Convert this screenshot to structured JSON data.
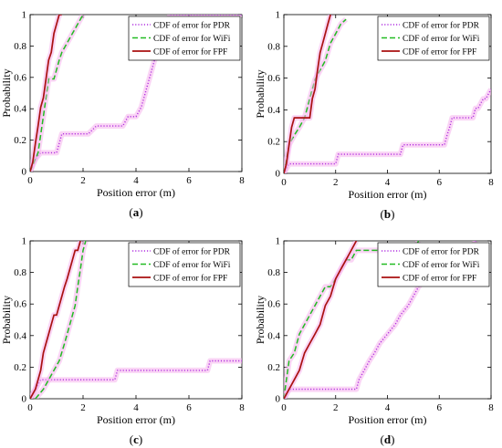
{
  "colors": {
    "pdr": "#b030e0",
    "wifi": "#22bb22",
    "fpf": "#aa1111",
    "halo": "#f6b3ec",
    "axis": "#000000"
  },
  "chart_data": [
    {
      "type": "line",
      "panel_label": "(a)",
      "xlabel": "Position error (m)",
      "ylabel": "Probability",
      "xlim": [
        0,
        8
      ],
      "ylim": [
        0,
        1
      ],
      "xticks": [
        0,
        2,
        4,
        6,
        8
      ],
      "yticks": [
        0,
        0.2,
        0.4,
        0.6,
        0.8,
        1
      ],
      "legend_position": "top-right",
      "series": [
        {
          "name": "CDF of error for PDR",
          "style": "dotted",
          "color_key": "pdr",
          "x": [
            0,
            0.1,
            0.2,
            0.4,
            0.5,
            1.0,
            1.1,
            1.2,
            2.0,
            2.2,
            2.5,
            3.0,
            3.5,
            3.7,
            4.0,
            4.2,
            4.3,
            4.4,
            4.5,
            4.6,
            4.7,
            4.8,
            4.9,
            5.0,
            5.1,
            5.3,
            8.0
          ],
          "y": [
            0,
            0.05,
            0.08,
            0.12,
            0.12,
            0.12,
            0.18,
            0.24,
            0.24,
            0.24,
            0.29,
            0.29,
            0.29,
            0.35,
            0.35,
            0.41,
            0.47,
            0.53,
            0.59,
            0.65,
            0.71,
            0.76,
            0.82,
            0.88,
            0.94,
            1.0,
            1.0
          ]
        },
        {
          "name": "CDF of error for WiFi",
          "style": "dashed",
          "color_key": "wifi",
          "x": [
            0,
            0.3,
            0.5,
            0.7,
            0.9,
            1.0,
            1.1,
            1.2,
            1.4,
            1.6,
            1.8,
            2.0
          ],
          "y": [
            0,
            0.12,
            0.35,
            0.59,
            0.59,
            0.65,
            0.71,
            0.76,
            0.82,
            0.88,
            0.94,
            1.0
          ]
        },
        {
          "name": "CDF of error for FPF",
          "style": "solid",
          "color_key": "fpf",
          "x": [
            0,
            0.1,
            0.2,
            0.3,
            0.4,
            0.5,
            0.6,
            0.7,
            0.8,
            0.9,
            1.0,
            1.1,
            1.2
          ],
          "y": [
            0,
            0.06,
            0.18,
            0.29,
            0.41,
            0.47,
            0.59,
            0.71,
            0.76,
            0.88,
            0.94,
            1.0,
            1.0
          ]
        }
      ]
    },
    {
      "type": "line",
      "panel_label": "(b)",
      "xlabel": "Position error (m)",
      "ylabel": "Probability",
      "xlim": [
        0,
        8
      ],
      "ylim": [
        0,
        1
      ],
      "xticks": [
        0,
        2,
        4,
        6,
        8
      ],
      "yticks": [
        0,
        0.2,
        0.4,
        0.6,
        0.8,
        1
      ],
      "legend_position": "top-right",
      "series": [
        {
          "name": "CDF of error for PDR",
          "style": "dotted",
          "color_key": "pdr",
          "x": [
            0,
            0.2,
            0.3,
            2.0,
            2.1,
            4.5,
            4.6,
            6.2,
            6.3,
            6.4,
            6.5,
            7.3,
            7.4,
            7.5,
            7.7,
            7.8,
            8.0
          ],
          "y": [
            0,
            0.06,
            0.06,
            0.06,
            0.12,
            0.12,
            0.18,
            0.18,
            0.24,
            0.29,
            0.35,
            0.35,
            0.41,
            0.41,
            0.47,
            0.47,
            0.53
          ]
        },
        {
          "name": "CDF of error for WiFi",
          "style": "dashed",
          "color_key": "wifi",
          "x": [
            0,
            0.2,
            0.4,
            0.6,
            0.8,
            1.0,
            1.2,
            1.4,
            1.6,
            1.8,
            2.0,
            2.2,
            2.4
          ],
          "y": [
            0,
            0.18,
            0.24,
            0.29,
            0.35,
            0.47,
            0.59,
            0.65,
            0.71,
            0.82,
            0.88,
            0.94,
            0.97
          ]
        },
        {
          "name": "CDF of error for FPF",
          "style": "solid",
          "color_key": "fpf",
          "x": [
            0,
            0.1,
            0.2,
            0.3,
            0.4,
            0.5,
            0.6,
            1.0,
            1.1,
            1.2,
            1.3,
            1.4,
            1.5,
            1.6,
            1.7,
            1.8
          ],
          "y": [
            0,
            0.06,
            0.18,
            0.29,
            0.35,
            0.35,
            0.35,
            0.35,
            0.47,
            0.53,
            0.65,
            0.76,
            0.82,
            0.88,
            0.94,
            1.0
          ]
        }
      ]
    },
    {
      "type": "line",
      "panel_label": "(c)",
      "xlabel": "Position error (m)",
      "ylabel": "Probability",
      "xlim": [
        0,
        8
      ],
      "ylim": [
        0,
        1
      ],
      "xticks": [
        0,
        2,
        4,
        6,
        8
      ],
      "yticks": [
        0,
        0.2,
        0.4,
        0.6,
        0.8,
        1
      ],
      "legend_position": "top-right",
      "series": [
        {
          "name": "CDF of error for PDR",
          "style": "dotted",
          "color_key": "pdr",
          "x": [
            0,
            0.2,
            0.4,
            3.2,
            3.3,
            6.7,
            6.8,
            8.0
          ],
          "y": [
            0,
            0.06,
            0.12,
            0.12,
            0.18,
            0.18,
            0.24,
            0.24
          ]
        },
        {
          "name": "CDF of error for WiFi",
          "style": "dashed",
          "color_key": "wifi",
          "x": [
            0.2,
            0.5,
            0.7,
            0.9,
            1.1,
            1.3,
            1.5,
            1.7,
            1.8,
            1.9,
            2.0,
            2.1
          ],
          "y": [
            0,
            0.06,
            0.12,
            0.18,
            0.24,
            0.35,
            0.47,
            0.59,
            0.71,
            0.82,
            0.94,
            1.0
          ]
        },
        {
          "name": "CDF of error for FPF",
          "style": "solid",
          "color_key": "fpf",
          "x": [
            0,
            0.2,
            0.3,
            0.4,
            0.5,
            0.6,
            0.7,
            0.8,
            0.9,
            1.0,
            1.1,
            1.2,
            1.3,
            1.4,
            1.5,
            1.6,
            1.7,
            1.8,
            1.9
          ],
          "y": [
            0,
            0.06,
            0.12,
            0.18,
            0.29,
            0.35,
            0.41,
            0.47,
            0.53,
            0.53,
            0.59,
            0.65,
            0.71,
            0.76,
            0.82,
            0.88,
            0.94,
            0.94,
            1.0
          ]
        }
      ]
    },
    {
      "type": "line",
      "panel_label": "(d)",
      "xlabel": "Position error (m)",
      "ylabel": "Probability",
      "xlim": [
        0,
        8
      ],
      "ylim": [
        0,
        1
      ],
      "xticks": [
        0,
        2,
        4,
        6,
        8
      ],
      "yticks": [
        0,
        0.2,
        0.4,
        0.6,
        0.8,
        1
      ],
      "legend_position": "top-right",
      "series": [
        {
          "name": "CDF of error for PDR",
          "style": "dotted",
          "color_key": "pdr",
          "x": [
            0,
            0.2,
            2.8,
            2.9,
            3.1,
            3.3,
            3.5,
            3.7,
            4.0,
            4.3,
            4.5,
            4.8,
            5.0,
            5.2,
            5.5,
            5.9,
            6.3,
            6.8,
            7.2,
            7.4
          ],
          "y": [
            0,
            0.06,
            0.06,
            0.12,
            0.18,
            0.24,
            0.29,
            0.35,
            0.41,
            0.47,
            0.53,
            0.59,
            0.65,
            0.71,
            0.76,
            0.82,
            0.88,
            0.94,
            0.94,
            1.0
          ]
        },
        {
          "name": "CDF of error for WiFi",
          "style": "dashed",
          "color_key": "wifi",
          "x": [
            0,
            0.1,
            0.2,
            0.4,
            0.6,
            0.8,
            1.0,
            1.2,
            1.4,
            1.6,
            1.8,
            2.0,
            2.2,
            2.4,
            2.6,
            2.8,
            3.0,
            5.0,
            5.2
          ],
          "y": [
            0,
            0.12,
            0.24,
            0.29,
            0.41,
            0.47,
            0.53,
            0.59,
            0.65,
            0.71,
            0.71,
            0.76,
            0.82,
            0.88,
            0.88,
            0.94,
            0.94,
            0.94,
            1.0
          ]
        },
        {
          "name": "CDF of error for FPF",
          "style": "solid",
          "color_key": "fpf",
          "x": [
            0,
            0.2,
            0.4,
            0.6,
            0.8,
            1.0,
            1.2,
            1.4,
            1.6,
            1.8,
            2.0,
            2.2,
            2.4,
            2.6,
            2.8
          ],
          "y": [
            0,
            0.06,
            0.12,
            0.18,
            0.29,
            0.35,
            0.41,
            0.47,
            0.59,
            0.65,
            0.76,
            0.82,
            0.88,
            0.94,
            1.0
          ]
        }
      ]
    }
  ]
}
